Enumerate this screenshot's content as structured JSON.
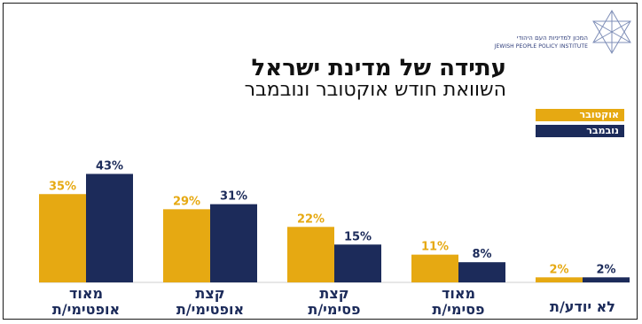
{
  "header": {
    "title": "עתידה של מדינת ישראל",
    "subtitle": "השוואת חודש אוקטובר ונובמבר"
  },
  "logo": {
    "hebrew_text": "המכון למדיניות העם היהודי",
    "english_text": "JEWISH PEOPLE POLICY INSTITUTE"
  },
  "colors": {
    "october": "#E6A912",
    "november": "#1C2B5A",
    "text": "#1C2B5A"
  },
  "chart_data": {
    "type": "bar",
    "title": "עתידה של מדינת ישראל",
    "subtitle": "השוואת חודש אוקטובר ונובמבר",
    "categories": [
      [
        "מאוד",
        "אופטימי/ת"
      ],
      [
        "קצת",
        "אופטימי/ת"
      ],
      [
        "קצת",
        "פסימי/ת"
      ],
      [
        "מאוד",
        "פסימי/ת"
      ],
      [
        "לא יודע/ת"
      ]
    ],
    "series": [
      {
        "name": "אוקטובר",
        "values": [
          35,
          29,
          22,
          11,
          2
        ],
        "color": "#E6A912"
      },
      {
        "name": "נובמבר",
        "values": [
          43,
          31,
          15,
          8,
          2
        ],
        "color": "#1C2B5A"
      }
    ],
    "value_suffix": "%",
    "legend_position": "top-right",
    "ylim": [
      0,
      45
    ],
    "grid": false
  }
}
